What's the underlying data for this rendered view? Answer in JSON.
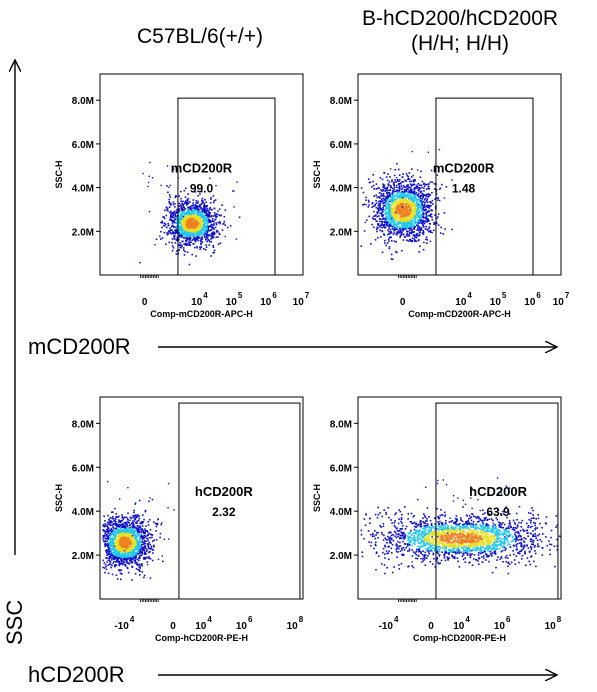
{
  "titles": {
    "left": "C57BL/6(+/+)",
    "right_line1": "B-hCD200/hCD200R",
    "right_line2": "(H/H; H/H)"
  },
  "axis_words": {
    "ssc": "SSC",
    "m_row": "mCD200R",
    "h_row": "hCD200R"
  },
  "colors": {
    "density_low": "#1010c8",
    "density_mid": "#20c8f0",
    "density_high": "#e8e020",
    "density_peak": "#f08020",
    "frame": "#000000"
  },
  "chart_data": [
    {
      "type": "scatter",
      "id": "top-left",
      "ylabel": "SSC-H",
      "xlabel": "Comp-mCD200R-APC-H",
      "y_ticks": [
        "2.0M",
        "4.0M",
        "6.0M",
        "8.0M"
      ],
      "y_tick_values": [
        2.0,
        4.0,
        6.0,
        8.0
      ],
      "ylim": [
        0,
        9.2
      ],
      "x_ticks": [
        {
          "base": "0",
          "exp": ""
        },
        {
          "base": "10",
          "exp": "4"
        },
        {
          "base": "10",
          "exp": "5"
        },
        {
          "base": "10",
          "exp": "6"
        },
        {
          "base": "10",
          "exp": "7"
        }
      ],
      "gate": {
        "name": "mCD200R",
        "value": "99.0"
      },
      "population": {
        "cx": 0.45,
        "cy": 2.4,
        "sx": 0.06,
        "sy": 0.45,
        "n": 1400
      }
    },
    {
      "type": "scatter",
      "id": "top-right",
      "ylabel": "SSC-H",
      "xlabel": "Comp-mCD200R-APC-H",
      "y_ticks": [
        "2.0M",
        "4.0M",
        "6.0M",
        "8.0M"
      ],
      "y_tick_values": [
        2.0,
        4.0,
        6.0,
        8.0
      ],
      "ylim": [
        0,
        9.2
      ],
      "x_ticks": [
        {
          "base": "0",
          "exp": ""
        },
        {
          "base": "10",
          "exp": "4"
        },
        {
          "base": "10",
          "exp": "5"
        },
        {
          "base": "10",
          "exp": "6"
        },
        {
          "base": "10",
          "exp": "7"
        }
      ],
      "gate": {
        "name": "mCD200R",
        "value": "1.48"
      },
      "population": {
        "cx": 0.22,
        "cy": 3.0,
        "sx": 0.07,
        "sy": 0.6,
        "n": 1700
      }
    },
    {
      "type": "scatter",
      "id": "bottom-left",
      "ylabel": "SSC-H",
      "xlabel": "Comp-hCD200R-PE-H",
      "y_ticks": [
        "2.0M",
        "4.0M",
        "6.0M",
        "8.0M"
      ],
      "y_tick_values": [
        2.0,
        4.0,
        6.0,
        8.0
      ],
      "ylim": [
        0,
        9.2
      ],
      "x_ticks": [
        {
          "base": "-10",
          "exp": "4"
        },
        {
          "base": "0",
          "exp": ""
        },
        {
          "base": "10",
          "exp": "4"
        },
        {
          "base": "10",
          "exp": "6"
        },
        {
          "base": "10",
          "exp": "8"
        }
      ],
      "gate": {
        "name": "hCD200R",
        "value": "2.32"
      },
      "population": {
        "cx": 0.12,
        "cy": 2.6,
        "sx": 0.06,
        "sy": 0.5,
        "n": 1600
      }
    },
    {
      "type": "scatter",
      "id": "bottom-right",
      "ylabel": "SSC-H",
      "xlabel": "Comp-hCD200R-PE-H",
      "y_ticks": [
        "2.0M",
        "4.0M",
        "6.0M",
        "8.0M"
      ],
      "y_tick_values": [
        2.0,
        4.0,
        6.0,
        8.0
      ],
      "ylim": [
        0,
        9.2
      ],
      "x_ticks": [
        {
          "base": "-10",
          "exp": "4"
        },
        {
          "base": "0",
          "exp": ""
        },
        {
          "base": "10",
          "exp": "4"
        },
        {
          "base": "10",
          "exp": "6"
        },
        {
          "base": "10",
          "exp": "8"
        }
      ],
      "gate": {
        "name": "hCD200R",
        "value": "63.9"
      },
      "population": {
        "cx": 0.5,
        "cy": 2.8,
        "sx": 0.2,
        "sy": 0.45,
        "n": 2000
      }
    }
  ]
}
